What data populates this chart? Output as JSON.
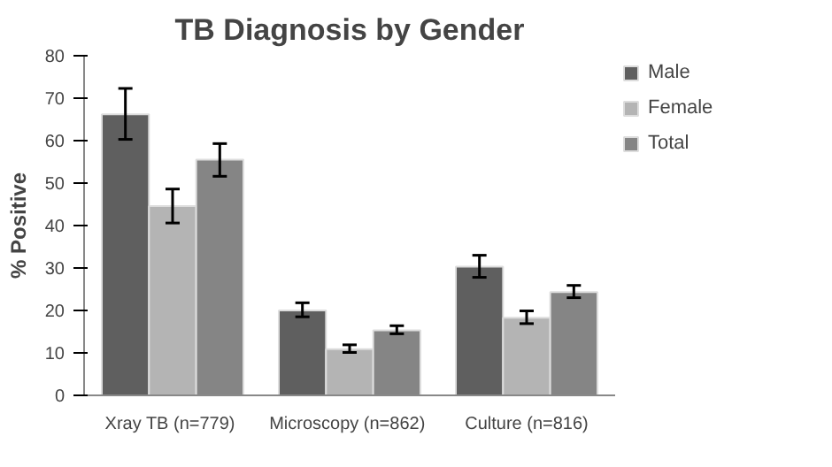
{
  "chart_data": {
    "type": "bar",
    "title": "TB Diagnosis by Gender",
    "ylabel": "% Positive",
    "categories": [
      "Xray  TB (n=779)",
      "Microscopy  (n=862)",
      "Culture (n=816)"
    ],
    "series": [
      {
        "name": "Male",
        "color": "#5f5f5f",
        "values": [
          66.2,
          20,
          30.3
        ],
        "errors": [
          [
            60.3,
            72.3
          ],
          [
            18.5,
            21.8
          ],
          [
            27.8,
            33.0
          ]
        ]
      },
      {
        "name": "Female",
        "color": "#b4b4b4",
        "values": [
          44.6,
          10.9,
          18.3
        ],
        "errors": [
          [
            40.6,
            48.6
          ],
          [
            10.1,
            11.9
          ],
          [
            16.9,
            19.9
          ]
        ]
      },
      {
        "name": "Total",
        "color": "#858585",
        "values": [
          55.5,
          15.3,
          24.3
        ],
        "errors": [
          [
            51.6,
            59.3
          ],
          [
            14.5,
            16.4
          ],
          [
            23.0,
            25.9
          ]
        ]
      }
    ],
    "ylim": [
      0,
      80
    ],
    "yticks": [
      0,
      10,
      20,
      30,
      40,
      50,
      60,
      70,
      80
    ],
    "grid": false,
    "legend": "right"
  }
}
